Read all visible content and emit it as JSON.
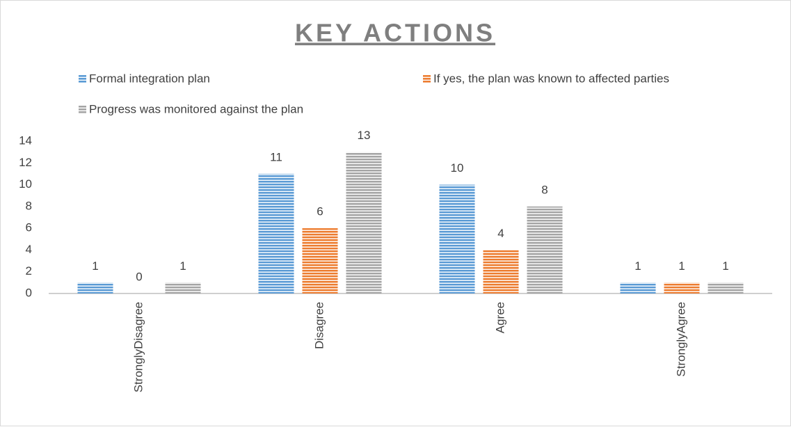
{
  "chart_data": {
    "type": "bar",
    "title": "KEY ACTIONS",
    "categories": [
      "StronglyDisagree",
      "Disagree",
      "Agree",
      "StronglyAgree"
    ],
    "series": [
      {
        "name": "Formal integration plan",
        "color": "#5b9bd5",
        "values": [
          1,
          11,
          10,
          1
        ]
      },
      {
        "name": "If yes, the plan was known to affected parties",
        "color": "#ed7d31",
        "values": [
          0,
          6,
          4,
          1
        ]
      },
      {
        "name": "Progress was monitored against the plan",
        "color": "#a5a5a5",
        "values": [
          1,
          13,
          8,
          1
        ]
      }
    ],
    "ylim": [
      0,
      14
    ],
    "yticks": [
      0,
      2,
      4,
      6,
      8,
      10,
      12,
      14
    ],
    "grid": false,
    "legend": "top"
  }
}
